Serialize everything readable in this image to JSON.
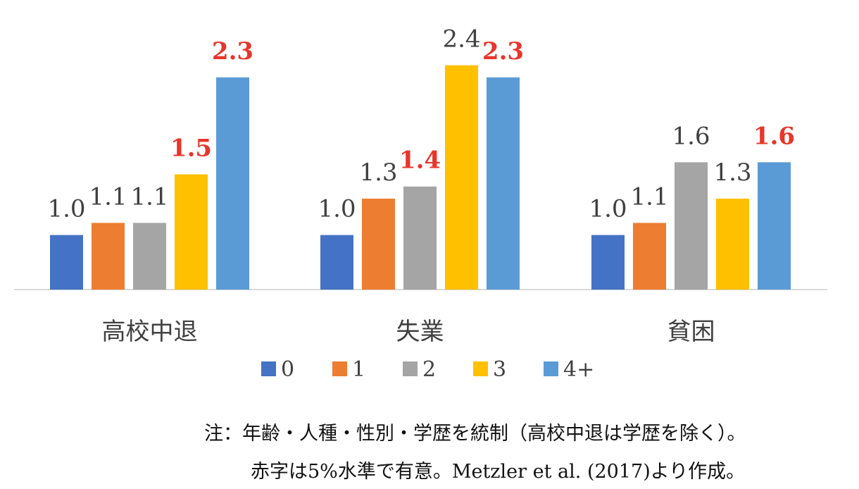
{
  "chart_data": {
    "type": "bar",
    "categories": [
      "高校中退",
      "失業",
      "貧困"
    ],
    "series": [
      {
        "name": "0",
        "color": "#4472C4",
        "values": [
          1.0,
          1.0,
          1.0
        ],
        "significant": [
          false,
          false,
          false
        ]
      },
      {
        "name": "1",
        "color": "#ED7D31",
        "values": [
          1.1,
          1.3,
          1.1
        ],
        "significant": [
          false,
          false,
          false
        ]
      },
      {
        "name": "2",
        "color": "#A5A5A5",
        "values": [
          1.1,
          1.4,
          1.6
        ],
        "significant": [
          false,
          true,
          false
        ]
      },
      {
        "name": "3",
        "color": "#FFC000",
        "values": [
          1.5,
          2.4,
          1.3
        ],
        "significant": [
          true,
          false,
          false
        ]
      },
      {
        "name": "4+",
        "color": "#5B9BD5",
        "values": [
          2.3,
          2.3,
          1.6
        ],
        "significant": [
          true,
          true,
          true
        ]
      }
    ],
    "data_labels": [
      [
        "1.0",
        "1.1",
        "1.1",
        "1.5",
        "2.3"
      ],
      [
        "1.0",
        "1.3",
        "1.4",
        "2.4",
        "2.3"
      ],
      [
        "1.0",
        "1.1",
        "1.6",
        "1.3",
        "1.6"
      ]
    ],
    "ylim": [
      0.55,
      2.45
    ],
    "grid": false,
    "legend_position": "bottom",
    "label_color": "#404040",
    "significant_label_color": "#E8352B",
    "axis_color": "#D9D9D9"
  },
  "notes": {
    "line1": "注：年齢・人種・性別・学歴を統制（高校中退は学歴を除く）。",
    "line2": "赤字は5%水準で有意。Metzler et al. (2017)より作成。"
  }
}
